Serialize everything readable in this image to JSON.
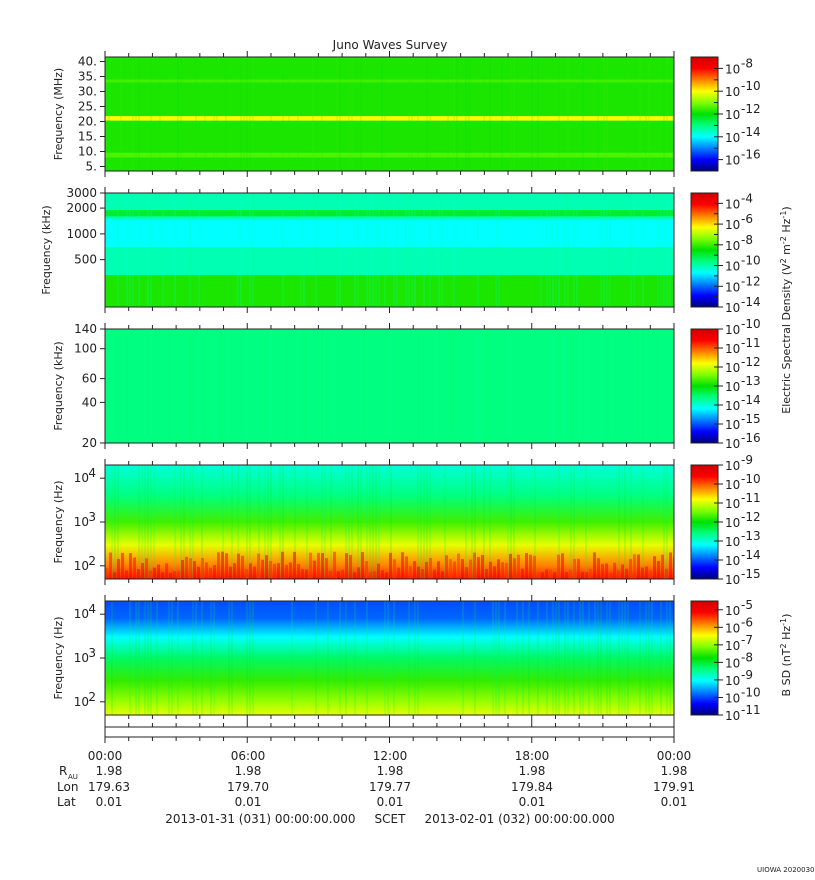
{
  "title": "Juno Waves Survey",
  "colors": {
    "colormap": [
      "#00007f",
      "#0000ff",
      "#0080ff",
      "#00ffff",
      "#00ff80",
      "#00e000",
      "#80ff00",
      "#ffff00",
      "#ff8000",
      "#ff0000",
      "#d00000"
    ],
    "axis": "#222222"
  },
  "chart_data": [
    {
      "type": "heatmap",
      "name": "panel-1",
      "ylabel": "Frequency (MHz)",
      "yscale": "linear",
      "ylim": [
        3.5,
        41.5
      ],
      "yticks": [
        {
          "v": 40,
          "label": "40."
        },
        {
          "v": 35,
          "label": "35."
        },
        {
          "v": 30,
          "label": "30."
        },
        {
          "v": 25,
          "label": "25."
        },
        {
          "v": 20,
          "label": "20."
        },
        {
          "v": 15,
          "label": "15."
        },
        {
          "v": 10,
          "label": "10."
        },
        {
          "v": 5,
          "label": "5."
        }
      ],
      "colorbar": {
        "exponents": [
          -8,
          -10,
          -12,
          -14,
          -16
        ],
        "range": [
          -17,
          -7
        ],
        "label": ""
      },
      "base_level": 0.52,
      "bands": [
        {
          "y0": 20.3,
          "y1": 21.8,
          "level": 0.7
        },
        {
          "y0": 8.0,
          "y1": 9.6,
          "level": 0.56
        },
        {
          "y0": 33.0,
          "y1": 34.0,
          "level": 0.55
        }
      ]
    },
    {
      "type": "heatmap",
      "name": "panel-2",
      "ylabel": "Frequency (kHz)",
      "yscale": "log",
      "ylim": [
        140,
        3000
      ],
      "yticks": [
        {
          "v": 3000,
          "label": "3000"
        },
        {
          "v": 2000,
          "label": "2000"
        },
        {
          "v": 1000,
          "label": "1000"
        },
        {
          "v": 500,
          "label": "500"
        }
      ],
      "colorbar": {
        "exponents": [
          -4,
          -6,
          -8,
          -10,
          -12,
          -14
        ],
        "range": [
          -14,
          -3
        ],
        "label": "Electric Spectral Density (V2 m-2 Hz-1)"
      },
      "base_level": 0.36,
      "bands": [
        {
          "y0": 140,
          "y1": 330,
          "level": 0.52
        },
        {
          "y0": 1600,
          "y1": 1900,
          "level": 0.46
        },
        {
          "y0": 700,
          "y1": 1500,
          "level": 0.3
        }
      ]
    },
    {
      "type": "heatmap",
      "name": "panel-3",
      "ylabel": "Frequency (kHz)",
      "yscale": "log",
      "ylim": [
        20,
        140
      ],
      "yticks": [
        {
          "v": 140,
          "label": "140"
        },
        {
          "v": 100,
          "label": "100"
        },
        {
          "v": 60,
          "label": "60"
        },
        {
          "v": 40,
          "label": "40"
        },
        {
          "v": 20,
          "label": "20"
        }
      ],
      "colorbar": {
        "exponents": [
          -10,
          -11,
          -12,
          -13,
          -14,
          -15,
          -16
        ],
        "range": [
          -16,
          -10
        ],
        "label": ""
      },
      "base_level": 0.4,
      "bands": []
    },
    {
      "type": "heatmap",
      "name": "panel-4",
      "ylabel": "Frequency (Hz)",
      "yscale": "log",
      "ylim": [
        50,
        20000
      ],
      "yticks": [
        {
          "v": 10000,
          "label": "10",
          "exp": "4"
        },
        {
          "v": 1000,
          "label": "10",
          "exp": "3"
        },
        {
          "v": 100,
          "label": "10",
          "exp": "2"
        }
      ],
      "colorbar": {
        "exponents": [
          -9,
          -10,
          -11,
          -12,
          -13,
          -14,
          -15
        ],
        "range": [
          -15,
          -9
        ],
        "label": ""
      },
      "gradient": [
        {
          "f": 20000,
          "level": 0.33
        },
        {
          "f": 4000,
          "level": 0.4
        },
        {
          "f": 1000,
          "level": 0.55
        },
        {
          "f": 300,
          "level": 0.68
        },
        {
          "f": 100,
          "level": 0.8
        },
        {
          "f": 50,
          "level": 0.88
        }
      ]
    },
    {
      "type": "heatmap",
      "name": "panel-5",
      "ylabel": "Frequency (Hz)",
      "yscale": "log",
      "ylim": [
        50,
        20000
      ],
      "yticks": [
        {
          "v": 10000,
          "label": "10",
          "exp": "4"
        },
        {
          "v": 1000,
          "label": "10",
          "exp": "3"
        },
        {
          "v": 100,
          "label": "10",
          "exp": "2"
        }
      ],
      "colorbar": {
        "exponents": [
          -5,
          -6,
          -7,
          -8,
          -9,
          -10,
          -11
        ],
        "range": [
          -11,
          -4.5
        ],
        "label": "B SD (nT2 Hz-1)"
      },
      "gradient": [
        {
          "f": 20000,
          "level": 0.16
        },
        {
          "f": 8000,
          "level": 0.18
        },
        {
          "f": 3000,
          "level": 0.3
        },
        {
          "f": 1000,
          "level": 0.42
        },
        {
          "f": 300,
          "level": 0.54
        },
        {
          "f": 100,
          "level": 0.62
        },
        {
          "f": 50,
          "level": 0.68
        }
      ]
    }
  ],
  "xaxis": {
    "time_labels": [
      "00:00",
      "06:00",
      "12:00",
      "18:00",
      "00:00"
    ],
    "rows": [
      {
        "name": "R",
        "sub": "AU",
        "values": [
          "1.98",
          "1.98",
          "1.98",
          "1.98",
          "1.98"
        ]
      },
      {
        "name": "Lon",
        "sub": "",
        "values": [
          "179.63",
          "179.70",
          "179.77",
          "179.84",
          "179.91"
        ]
      },
      {
        "name": "Lat",
        "sub": "",
        "values": [
          "0.01",
          "0.01",
          "0.01",
          "0.01",
          "0.01"
        ]
      }
    ],
    "footer": "2013-01-31 (031) 00:00:00.000     SCET     2013-02-01 (032) 00:00:00.000"
  },
  "watermark": "UIOWA 20200306",
  "colorbar_labels": {
    "electric_prefix": "Electric Spectral Density (V",
    "electric_mid": " m",
    "electric_mid2": " Hz",
    "electric_end": ")",
    "bsd_prefix": "B SD (nT",
    "bsd_mid": " Hz",
    "bsd_end": ")",
    "sup_2": "2",
    "sup_m2": "-2",
    "sup_m1": "-1"
  }
}
